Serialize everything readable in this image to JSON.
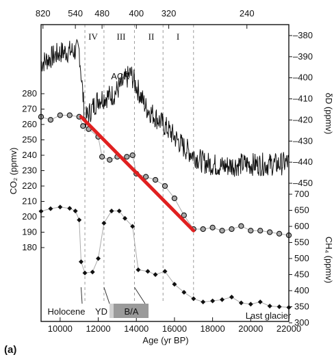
{
  "chart_data": {
    "type": "line",
    "panel_label": "(a)",
    "x_axis": {
      "label": "Age (yr BP)",
      "range": [
        9000,
        22000
      ],
      "ticks": [
        10000,
        12000,
        14000,
        16000,
        18000,
        20000,
        22000
      ]
    },
    "top_axis": {
      "ticks": [
        "820",
        "540",
        "480",
        "400",
        "320",
        "240"
      ],
      "tick_x": [
        9100,
        10800,
        12200,
        14000,
        15700,
        19800
      ]
    },
    "dD": {
      "axis_label": "δD (ppmv)",
      "range": [
        -450,
        -375
      ],
      "ticks": [
        -380,
        -390,
        -400,
        -410,
        -420,
        -430,
        -440,
        -450
      ]
    },
    "CO2": {
      "axis_label": "CO₂ (ppmv)",
      "range": [
        170,
        290
      ],
      "ticks": [
        280,
        270,
        260,
        250,
        240,
        230,
        220,
        210,
        200,
        190,
        180
      ]
    },
    "CH4": {
      "axis_label": "CH₄ (ppmv)",
      "range": [
        300,
        700
      ],
      "ticks": [
        700,
        650,
        600,
        550,
        500,
        450,
        400,
        350,
        300
      ]
    },
    "series": [
      {
        "x": [
          9000,
          10000,
          11000,
          11300,
          12000,
          12800,
          13700,
          14500,
          15500,
          16500,
          17500,
          18500,
          19500,
          20500,
          21500,
          22000
        ],
        "y": [
          -393,
          -388,
          -387,
          -420,
          -410,
          -408,
          -398,
          -414,
          -423,
          -433,
          -440,
          -442,
          -441,
          -441,
          -441,
          -440
        ]
      },
      {
        "x": [
          9000,
          9500,
          10000,
          10500,
          11000,
          11200,
          11500,
          12000,
          12200,
          12600,
          13000,
          13500,
          13800,
          14000,
          14500,
          15000,
          15500,
          16000,
          16500,
          17000,
          17500,
          18000,
          18500,
          19000,
          19500,
          20000,
          20500,
          21000,
          21500,
          22000
        ],
        "y": [
          265,
          263,
          266,
          266,
          265,
          259,
          257,
          252,
          239,
          237,
          239,
          239,
          240,
          228,
          226,
          224,
          220,
          212,
          201,
          192,
          192,
          193,
          191,
          192,
          194,
          191,
          191,
          190,
          189,
          188
        ]
      },
      {
        "x": [
          9000,
          9500,
          10000,
          10500,
          10800,
          11000,
          11100,
          11300,
          11700,
          12000,
          12300,
          12700,
          13100,
          13400,
          13800,
          14100,
          14600,
          15000,
          15500,
          16000,
          16500,
          17000,
          17500,
          18000,
          18500,
          19000,
          19500,
          20000,
          20500,
          21000,
          21500,
          22000
        ],
        "y": [
          647,
          655,
          660,
          656,
          648,
          620,
          490,
          455,
          458,
          500,
          610,
          648,
          648,
          625,
          600,
          465,
          460,
          450,
          460,
          420,
          395,
          375,
          365,
          368,
          372,
          380,
          362,
          358,
          365,
          352,
          350,
          348
        ]
      }
    ],
    "trend_line": {
      "x": [
        11100,
        17000
      ],
      "co2": [
        265,
        191
      ]
    },
    "boundaries": [
      11300,
      12300,
      13900,
      15400,
      17000
    ],
    "periods": [
      "IV",
      "III",
      "II",
      "I"
    ],
    "annotations": {
      "acr": "ACR",
      "holocene": "Holocene",
      "yd": "YD",
      "ba": "B/A",
      "last_glacier": "Last glacier"
    }
  }
}
